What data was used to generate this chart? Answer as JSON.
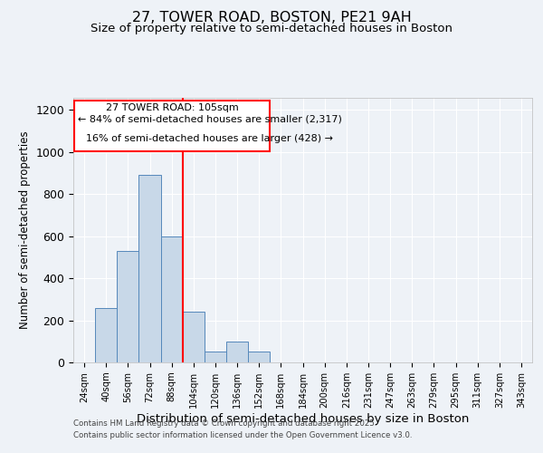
{
  "title1": "27, TOWER ROAD, BOSTON, PE21 9AH",
  "title2": "Size of property relative to semi-detached houses in Boston",
  "xlabel": "Distribution of semi-detached houses by size in Boston",
  "ylabel": "Number of semi-detached properties",
  "bin_labels": [
    "24sqm",
    "40sqm",
    "56sqm",
    "72sqm",
    "88sqm",
    "104sqm",
    "120sqm",
    "136sqm",
    "152sqm",
    "168sqm",
    "184sqm",
    "200sqm",
    "216sqm",
    "231sqm",
    "247sqm",
    "263sqm",
    "279sqm",
    "295sqm",
    "311sqm",
    "327sqm",
    "343sqm"
  ],
  "bar_heights": [
    0,
    260,
    530,
    890,
    600,
    240,
    50,
    100,
    50,
    0,
    0,
    0,
    0,
    0,
    0,
    0,
    0,
    0,
    0,
    0,
    0
  ],
  "bar_color": "#c8d8e8",
  "bar_edge_color": "#5588bb",
  "red_line_x": 5,
  "ylim": [
    0,
    1260
  ],
  "yticks": [
    0,
    200,
    400,
    600,
    800,
    1000,
    1200
  ],
  "annotation_title": "27 TOWER ROAD: 105sqm",
  "annotation_line1": "← 84% of semi-detached houses are smaller (2,317)",
  "annotation_line2": "16% of semi-detached houses are larger (428) →",
  "footer1": "Contains HM Land Registry data © Crown copyright and database right 2025.",
  "footer2": "Contains public sector information licensed under the Open Government Licence v3.0.",
  "bg_color": "#eef2f7"
}
